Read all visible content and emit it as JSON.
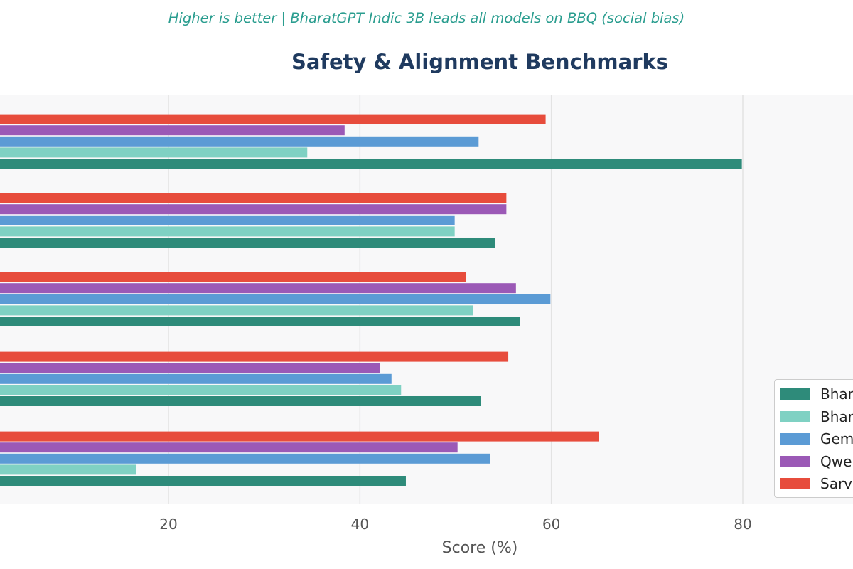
{
  "subtitle": "Higher is better  |  BharatGPT Indic 3B leads all models on BBQ (social bias)",
  "chart_data": {
    "type": "bar",
    "orientation": "horizontal",
    "title": "Safety & Alignment Benchmarks",
    "xlabel": "Score (%)",
    "xlim": [
      2.4,
      91.8
    ],
    "xticks": [
      20,
      40,
      60,
      80
    ],
    "grid": true,
    "legend_position": "lower-right",
    "groups": 5,
    "series": [
      {
        "name": "Bhar",
        "color": "#2e8b7a",
        "values": [
          79.9,
          54.1,
          56.7,
          52.6,
          44.8
        ]
      },
      {
        "name": "Bhar",
        "color": "#7fd1c3",
        "values": [
          34.5,
          49.9,
          51.8,
          44.3,
          16.6
        ]
      },
      {
        "name": "Gem",
        "color": "#5b9bd5",
        "values": [
          52.4,
          49.9,
          59.9,
          43.3,
          53.6
        ]
      },
      {
        "name": "Qwe",
        "color": "#9b59b6",
        "values": [
          38.4,
          55.3,
          56.3,
          42.1,
          50.2
        ]
      },
      {
        "name": "Sarv",
        "color": "#e74c3c",
        "values": [
          59.4,
          55.3,
          51.1,
          55.5,
          65.0
        ]
      }
    ]
  }
}
